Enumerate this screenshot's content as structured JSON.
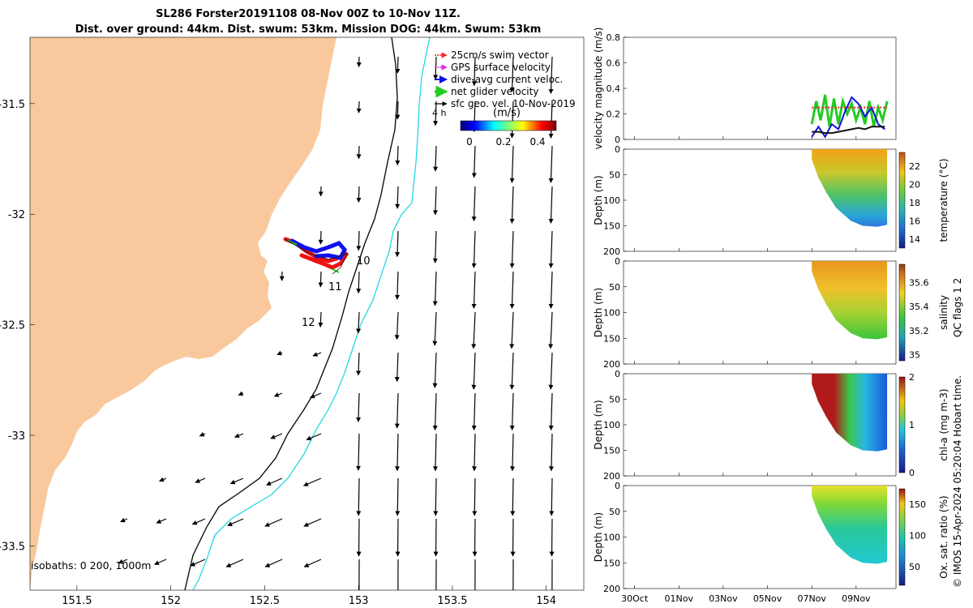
{
  "titles": {
    "line1": "SL286 Forster20191108 08-Nov 00Z to 10-Nov 11Z.",
    "line2": "Dist. over ground: 44km. Dist. swum: 53km. Mission DOG: 44km. Swum: 53km"
  },
  "colors": {
    "land": "#f9c99d",
    "ocean": "#ffffff",
    "isobath_200": "#000000",
    "isobath_1000": "#22d8e6",
    "gps_velocity": "#dd22dd",
    "swim_vector": "#ee2222",
    "dive_avg_current": "#1010dd",
    "net_glider_velocity": "#22cc22",
    "track_red": "#ee1111",
    "track_blue": "#1111ee"
  },
  "chart_data": [
    {
      "type": "map",
      "id": "track-map",
      "xlim": [
        151.25,
        154.2
      ],
      "ylim": [
        -33.7,
        -31.2
      ],
      "xticks": [
        "151.5",
        "152",
        "152.5",
        "153",
        "153.5",
        "154"
      ],
      "yticks": [
        "-31.5",
        "-32",
        "-32.5",
        "-33",
        "-33.5"
      ],
      "legend": {
        "items": [
          {
            "label": "25cm/s swim vector",
            "color": "#ee2222",
            "style": "arrow"
          },
          {
            "label": "GPS surface velocity",
            "color": "#dd22dd",
            "style": "arrow"
          },
          {
            "label": "dive-avg current veloc.",
            "color": "#1010dd",
            "style": "arrow"
          },
          {
            "label": "net glider velocity",
            "color": "#22cc22",
            "style": "arrow"
          },
          {
            "label": "sfc geo. vel. 10-Nov-2019",
            "color": "#000000",
            "style": "arrow"
          }
        ],
        "colorbar_label": "(m/s)",
        "colorbar_ticks": [
          "0",
          "0.2",
          "0.4"
        ],
        "scale_arrow_label": "4 h"
      },
      "day_labels": [
        "10",
        "11",
        "12"
      ],
      "isobath_label": "isobaths: 0  200, 1000m"
    },
    {
      "type": "line",
      "id": "velocity",
      "ylabel": "velocity magnitude (m/s)",
      "ylim": [
        0,
        0.8
      ],
      "yticks": [
        "0",
        "0.2",
        "0.4",
        "0.6",
        "0.8"
      ],
      "series": [
        {
          "color": "#22cc22",
          "x": [
            8.0,
            8.2,
            8.4,
            8.6,
            8.8,
            9.0,
            9.2,
            9.4,
            9.6,
            9.8,
            10.0,
            10.2,
            10.4,
            10.6,
            10.8,
            11.0,
            11.2,
            11.4
          ],
          "values": [
            0.12,
            0.3,
            0.15,
            0.35,
            0.1,
            0.32,
            0.12,
            0.3,
            0.2,
            0.28,
            0.15,
            0.25,
            0.12,
            0.3,
            0.1,
            0.25,
            0.15,
            0.3
          ]
        },
        {
          "color": "#1010dd",
          "x": [
            8.0,
            8.3,
            8.6,
            8.9,
            9.2,
            9.5,
            9.8,
            10.1,
            10.4,
            10.7,
            11.0,
            11.3
          ],
          "values": [
            0.02,
            0.1,
            0.02,
            0.12,
            0.08,
            0.22,
            0.33,
            0.28,
            0.18,
            0.25,
            0.12,
            0.08
          ]
        },
        {
          "color": "#111111",
          "x": [
            8.0,
            8.3,
            8.6,
            8.9,
            9.2,
            9.5,
            9.8,
            10.1,
            10.4,
            10.7,
            11.0,
            11.3
          ],
          "values": [
            0.06,
            0.06,
            0.05,
            0.05,
            0.06,
            0.07,
            0.08,
            0.09,
            0.08,
            0.1,
            0.1,
            0.1
          ]
        },
        {
          "color": "#ee2222",
          "x": [
            8.0,
            8.5,
            9.0,
            9.5,
            10.0,
            10.5,
            11.0,
            11.4
          ],
          "values": [
            0.25,
            0.25,
            0.25,
            0.25,
            0.25,
            0.25,
            0.25,
            0.25
          ]
        }
      ]
    },
    {
      "type": "heatmap",
      "id": "temperature",
      "ylabel": "Depth (m)",
      "ylim": [
        200,
        0
      ],
      "yticks": [
        "0",
        "50",
        "100",
        "150",
        "200"
      ],
      "colorbar_label": "temperature (°C)",
      "colorbar_ticks": [
        "14",
        "16",
        "18",
        "20",
        "22"
      ],
      "colorbar_range": [
        13,
        23.5
      ],
      "surface_value": 21.8,
      "bottom_value": 14.5
    },
    {
      "type": "heatmap",
      "id": "salinity",
      "ylabel": "Depth (m)",
      "ylim": [
        200,
        0
      ],
      "yticks": [
        "0",
        "50",
        "100",
        "150",
        "200"
      ],
      "colorbar_label": "salinity",
      "colorbar_ticks": [
        "35",
        "35.2",
        "35.4",
        "35.6"
      ],
      "colorbar_range": [
        34.95,
        35.75
      ],
      "surface_value": 35.6,
      "bottom_value": 35.15
    },
    {
      "type": "heatmap",
      "id": "chl-a",
      "ylabel": "Depth (m)",
      "ylim": [
        200,
        0
      ],
      "yticks": [
        "0",
        "50",
        "100",
        "150",
        "200"
      ],
      "colorbar_label": "chl-a (mg m-3)",
      "colorbar_ticks": [
        "0",
        "1",
        "2"
      ],
      "colorbar_range": [
        0,
        2
      ],
      "surface_value": 1.9,
      "bottom_value": 0.1
    },
    {
      "type": "heatmap",
      "id": "oxygen",
      "ylabel": "Depth (m)",
      "ylim": [
        200,
        0
      ],
      "yticks": [
        "0",
        "50",
        "100",
        "150",
        "200"
      ],
      "colorbar_label": "Ox. sat. ratio (%)",
      "colorbar_ticks": [
        "50",
        "100",
        "150"
      ],
      "colorbar_range": [
        20,
        175
      ],
      "surface_value": 135,
      "bottom_value": 70
    }
  ],
  "time_axis": {
    "ticks": [
      "30Oct",
      "01Nov",
      "03Nov",
      "05Nov",
      "07Nov",
      "09Nov"
    ],
    "xlim": [
      -0.5,
      11.8
    ],
    "tick_days": [
      0,
      2,
      4,
      6,
      8,
      10
    ]
  },
  "side_labels": {
    "qc_flags": "QC flags 1  2",
    "copyright": "© IMOS 15-Apr-2024 05:20:04 Hobart time."
  }
}
